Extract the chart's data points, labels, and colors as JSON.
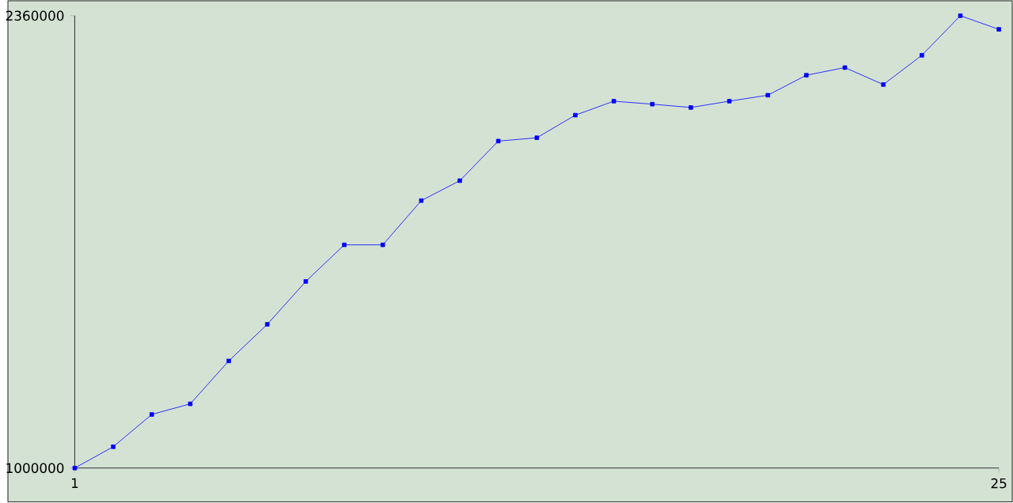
{
  "chart_data": {
    "type": "line",
    "x": [
      1,
      2,
      3,
      4,
      5,
      6,
      7,
      8,
      9,
      10,
      11,
      12,
      13,
      14,
      15,
      16,
      17,
      18,
      19,
      20,
      21,
      22,
      23,
      24,
      25
    ],
    "series": [
      {
        "color": "#0000ff",
        "values": [
          1000000,
          1064000,
          1161000,
          1193000,
          1322000,
          1432000,
          1561000,
          1671000,
          1671000,
          1804000,
          1864000,
          1983000,
          1993000,
          2061000,
          2103000,
          2094000,
          2084000,
          2103000,
          2121000,
          2181000,
          2204000,
          2153000,
          2241000,
          2360000,
          2319000
        ]
      }
    ],
    "xlim": [
      1,
      25
    ],
    "ylim": [
      1000000,
      2360000
    ],
    "xticks": [
      1,
      25
    ],
    "yticks": [
      1000000,
      2360000
    ],
    "grid": false,
    "marker": "square",
    "line_style": "solid"
  }
}
